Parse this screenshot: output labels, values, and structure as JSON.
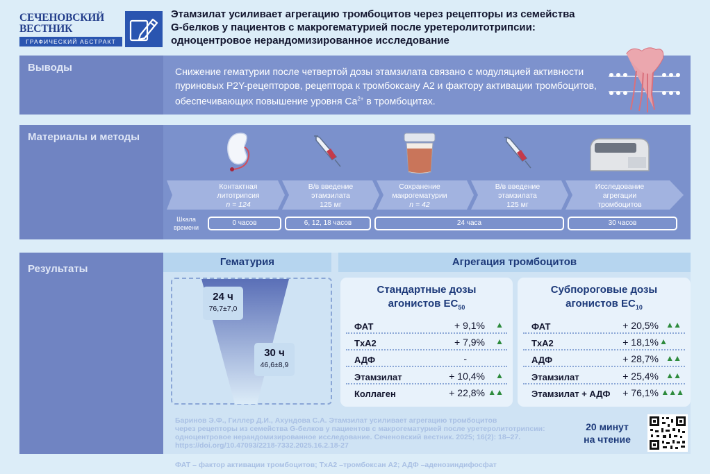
{
  "logo": {
    "line1": "СЕЧЕНОВСКИЙ",
    "line2": "ВЕСТНИК",
    "subtitle": "ГРАФИЧЕСКИЙ АБСТРАКТ",
    "icon": "pencil-icon"
  },
  "title": [
    "Этамзилат усиливает агрегацию тромбоцитов через рецепторы из семейства",
    "G-белков у пациентов с макрогематурией после уретеролитотрипсии:",
    "одноцентровое нерандомизированное исследование"
  ],
  "conclusions": {
    "label": "Выводы",
    "text_main": "Снижение гематурии после четвертой дозы этамзилата связано с модуляцией активности пуриновых P2Y-рецепторов, рецептора к тромбоксану А2 и фактору активации тромбоцитов, обеспечивающих повышение уровня Ca",
    "sup": "2+",
    "text_end": " в тромбоцитах.",
    "icon": "membrane-receptor-icon"
  },
  "methods": {
    "label": "Материалы и методы",
    "stages": [
      {
        "l1": "Контактная",
        "l2": "литотрипсия",
        "l3": "n = 124",
        "icon": "kidney-icon"
      },
      {
        "l1": "В/в введение",
        "l2": "этамзилата",
        "l3": "125 мг",
        "icon": "syringe-icon"
      },
      {
        "l1": "Сохранение",
        "l2": "макрогематурии",
        "l3": "n = 42",
        "icon": "urine-cup-icon"
      },
      {
        "l1": "В/в введение",
        "l2": "этамзилата",
        "l3": "125 мг",
        "icon": "syringe-icon"
      },
      {
        "l1": "Исследование",
        "l2": "агрегации",
        "l3": "тромбоцитов",
        "icon": "analyzer-icon"
      }
    ],
    "timeline_label": [
      "Шкала",
      "времени"
    ],
    "timeline": [
      "0 часов",
      "6, 12, 18 часов",
      "24 часа",
      "30 часов"
    ]
  },
  "results": {
    "label": "Результаты",
    "hematuria": {
      "title": "Гематурия",
      "p1_time": "24 ч",
      "p1_val": "76,7±7,0",
      "p2_time": "30 ч",
      "p2_val": "46,6±8,9"
    },
    "aggregation_title": "Агрегация тромбоцитов",
    "standard": {
      "title1": "Стандартные дозы",
      "title2": "агонистов EC",
      "sub": "50",
      "rows": [
        {
          "name": "ФАТ",
          "value": "+ 9,1%",
          "arrows": "▲"
        },
        {
          "name": "TxA2",
          "value": "+ 7,9%",
          "arrows": "▲"
        },
        {
          "name": "АДФ",
          "value": "-",
          "arrows": ""
        },
        {
          "name": "Этамзилат",
          "value": "+ 10,4%",
          "arrows": "▲"
        },
        {
          "name": "Коллаген",
          "value": "+ 22,8%",
          "arrows": "▲▲"
        }
      ]
    },
    "subthreshold": {
      "title1": "Субпороговые дозы",
      "title2": "агонистов EC",
      "sub": "10",
      "rows": [
        {
          "name": "ФАТ",
          "value": "+ 20,5%",
          "arrows": "▲▲"
        },
        {
          "name": "TxA2",
          "value": "+ 18,1%",
          "arrows": "▲"
        },
        {
          "name": "АДФ",
          "value": "+ 28,7%",
          "arrows": "▲▲"
        },
        {
          "name": "Этамзилат",
          "value": "+ 25,4%",
          "arrows": "▲▲"
        },
        {
          "name": "Этамзилат + АДФ",
          "value": "+ 76,1%",
          "arrows": "▲▲▲"
        }
      ]
    }
  },
  "reference": [
    "Баринов Э.Ф., Гиллер Д.И., Ахундова С.А. Этамзилат усиливает агрегацию тромбоцитов",
    "через рецепторы из семейства G-белков у пациентов с макрогематурией после уретеролитотрипсии:",
    "одноцентровое нерандомизированное исследование. Сеченовский вестник. 2025; 16(2): 18–27.",
    "https://doi.org/10.47093/2218-7332.2025.16.2.18-27"
  ],
  "reading": [
    "20 минут",
    "на чтение"
  ],
  "qr": "qr-code-icon",
  "footnote": "ФАТ – фактор активации тромбоцитов; TxA2 –тромбоксан А2; АДФ –аденозиндифосфат"
}
